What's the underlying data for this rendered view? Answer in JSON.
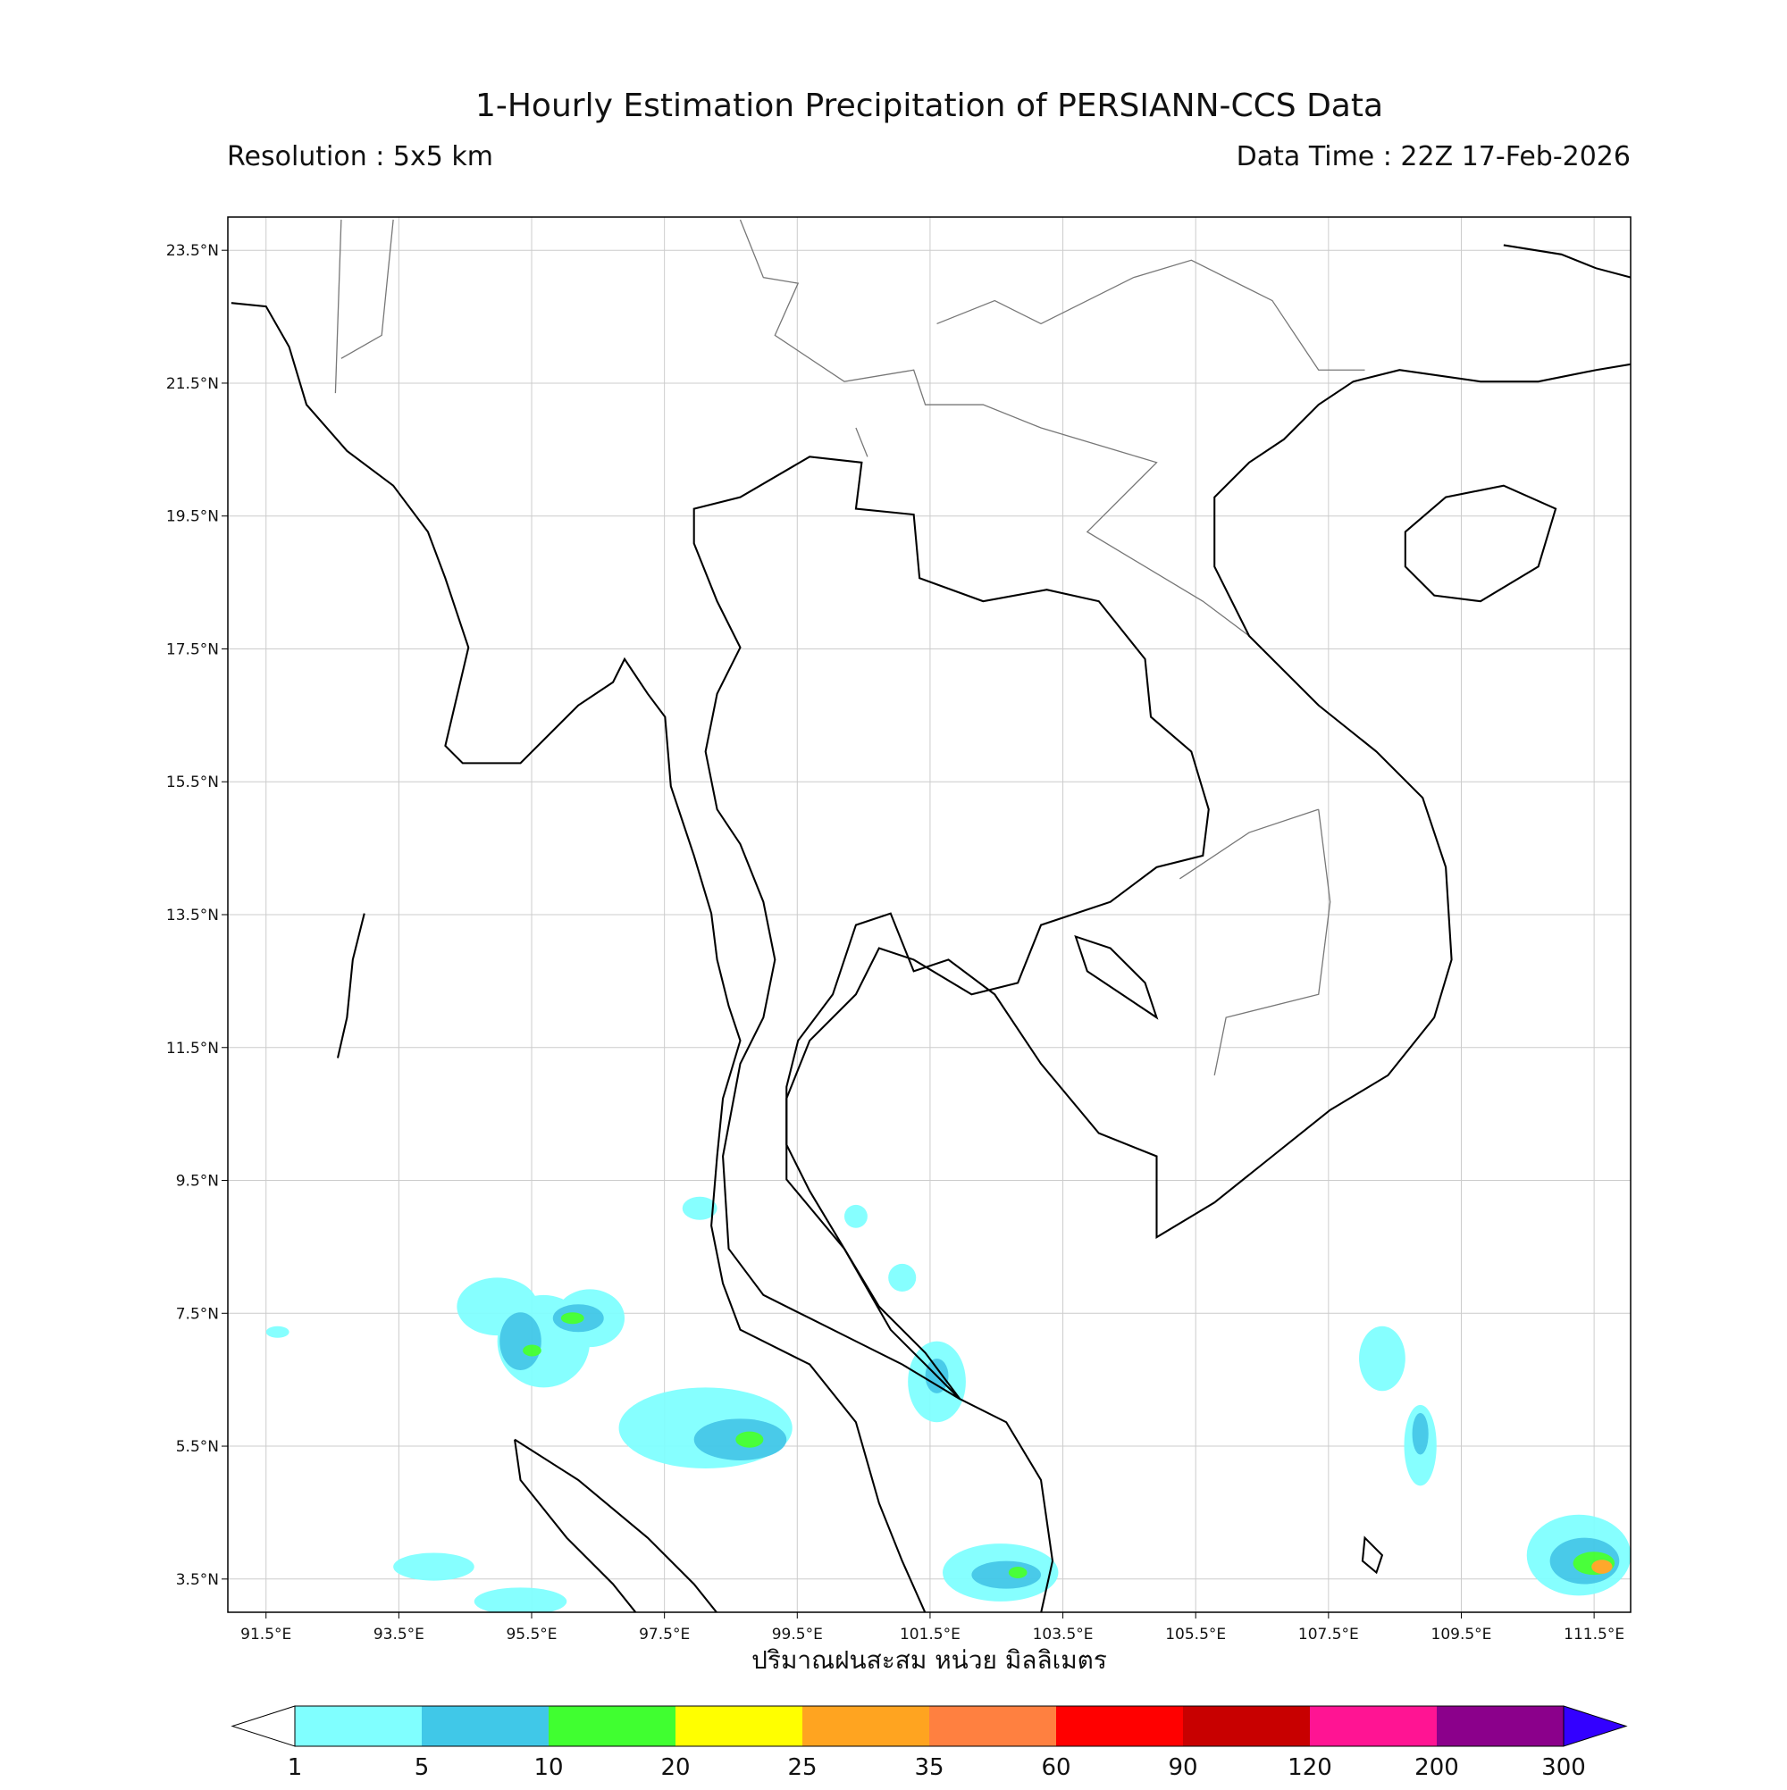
{
  "map": {
    "title": "1-Hourly Estimation Precipitation of PERSIANN-CCS Data",
    "resolution": "Resolution : 5x5 km",
    "data_time": "Data Time : 22Z 17-Feb-2026",
    "xlim": [
      90.925,
      112.05
    ],
    "ylim": [
      3.0,
      24.0
    ],
    "xticks": [
      {
        "value": 91.5,
        "label": "91.5°E"
      },
      {
        "value": 93.5,
        "label": "93.5°E"
      },
      {
        "value": 95.5,
        "label": "95.5°E"
      },
      {
        "value": 97.5,
        "label": "97.5°E"
      },
      {
        "value": 99.5,
        "label": "99.5°E"
      },
      {
        "value": 101.5,
        "label": "101.5°E"
      },
      {
        "value": 103.5,
        "label": "103.5°E"
      },
      {
        "value": 105.5,
        "label": "105.5°E"
      },
      {
        "value": 107.5,
        "label": "107.5°E"
      },
      {
        "value": 109.5,
        "label": "109.5°E"
      },
      {
        "value": 111.5,
        "label": "111.5°E"
      }
    ],
    "yticks": [
      {
        "value": 3.5,
        "label": "3.5°N"
      },
      {
        "value": 5.5,
        "label": "5.5°N"
      },
      {
        "value": 7.5,
        "label": "7.5°N"
      },
      {
        "value": 9.5,
        "label": "9.5°N"
      },
      {
        "value": 11.5,
        "label": "11.5°N"
      },
      {
        "value": 13.5,
        "label": "13.5°N"
      },
      {
        "value": 15.5,
        "label": "15.5°N"
      },
      {
        "value": 17.5,
        "label": "17.5°N"
      },
      {
        "value": 19.5,
        "label": "19.5°N"
      },
      {
        "value": 21.5,
        "label": "21.5°N"
      },
      {
        "value": 23.5,
        "label": "23.5°N"
      }
    ],
    "grid": true,
    "xlabel": "ปริมาณฝนสะสม หน่วย มิลลิเมตร",
    "colorbar": {
      "levels": [
        1,
        5,
        10,
        20,
        25,
        35,
        60,
        90,
        120,
        200,
        300
      ],
      "colors": [
        "#80ffff",
        "#40c8e8",
        "#40ff30",
        "#ffff00",
        "#ffa420",
        "#ff8040",
        "#ff0000",
        "#c80000",
        "#ff1493",
        "#8b008b"
      ],
      "under_color": "#ffffff",
      "over_color": "#3300ff"
    }
  }
}
